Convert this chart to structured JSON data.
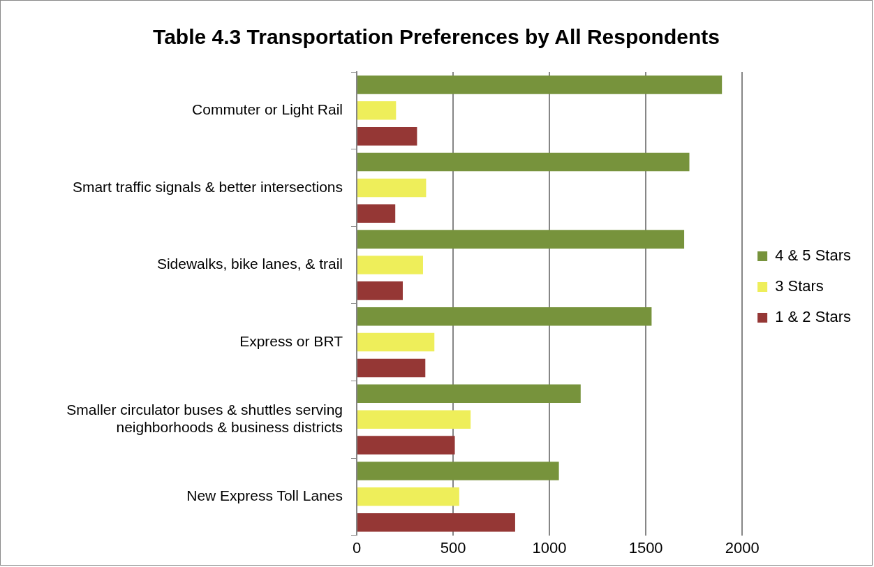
{
  "chart_data": {
    "type": "bar",
    "orientation": "horizontal",
    "title": "Table 4.3 Transportation Preferences by All Respondents",
    "categories": [
      "Commuter or Light Rail",
      "Smart traffic signals & better intersections",
      "Sidewalks, bike lanes, & trail",
      "Express or BRT",
      "Smaller circulator buses & shuttles serving neighborhoods & business districts",
      "New Express Toll Lanes"
    ],
    "series": [
      {
        "name": "4 & 5 Stars",
        "color": "#77933c",
        "values": [
          1895,
          1726,
          1699,
          1530,
          1162,
          1049
        ]
      },
      {
        "name": "3 Stars",
        "color": "#eeee5a",
        "values": [
          204,
          360,
          344,
          403,
          591,
          532
        ]
      },
      {
        "name": "1 & 2 Stars",
        "color": "#953735",
        "values": [
          313,
          200,
          239,
          356,
          509,
          822
        ]
      }
    ],
    "xlim": [
      0,
      2000
    ],
    "xticks": [
      0,
      500,
      1000,
      1500,
      2000
    ],
    "grid": "x",
    "legend": "right"
  }
}
